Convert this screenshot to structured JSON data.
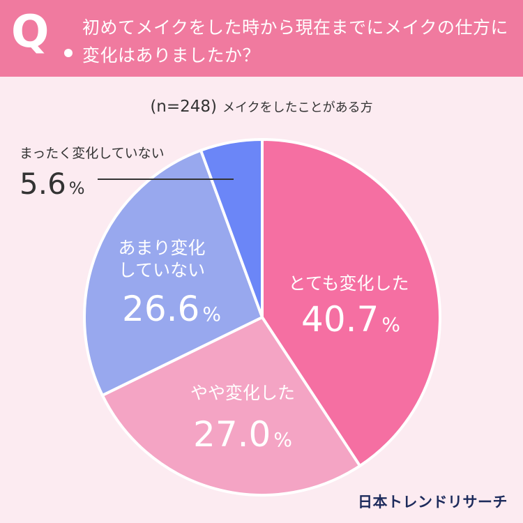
{
  "header": {
    "q_mark": "Q",
    "question": "初めてメイクをした時から現在までにメイクの仕方に変化はありましたか？",
    "color": "#f07a9f"
  },
  "sample": {
    "n": "(n=248)",
    "who": "メイクをしたことがある方"
  },
  "brand": "日本トレンドリサーチ",
  "chart_data": {
    "type": "pie",
    "title": "初めてメイクをした時から現在までにメイクの仕方に変化はありましたか？",
    "unit": "%",
    "slices": [
      {
        "label": "とても変化した",
        "value": 40.7,
        "display": "40.7",
        "color": "#f56fa2"
      },
      {
        "label": "やや変化した",
        "value": 27.0,
        "display": "27.0",
        "color": "#f4a4c4"
      },
      {
        "label": "あまり変化していない",
        "value": 26.6,
        "display": "26.6",
        "color": "#98a8ee"
      },
      {
        "label": "まったく変化していない",
        "value": 5.6,
        "display": "5.6",
        "color": "#6b86f7"
      }
    ]
  }
}
